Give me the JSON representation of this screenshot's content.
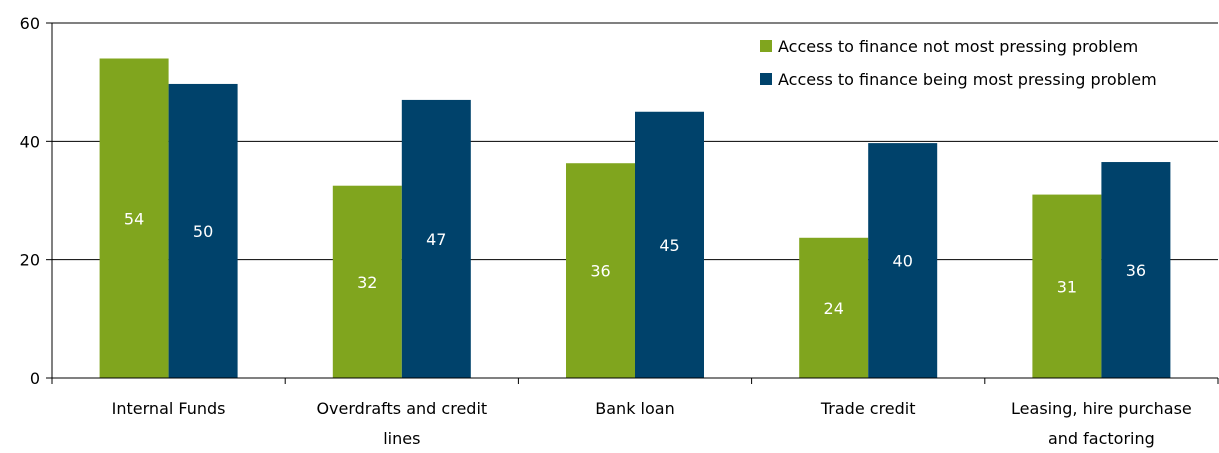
{
  "chart_data": {
    "type": "bar",
    "title": "",
    "xlabel": "",
    "ylabel": "",
    "ylim": [
      0,
      60
    ],
    "yticks": [
      0,
      20,
      40,
      60
    ],
    "grid": true,
    "legend_position": "top-right",
    "categories": [
      [
        "Internal Funds"
      ],
      [
        "Overdrafts and credit",
        "lines"
      ],
      [
        "Bank loan"
      ],
      [
        "Trade credit"
      ],
      [
        "Leasing, hire purchase",
        "and factoring"
      ]
    ],
    "series": [
      {
        "name": "Access to finance not most pressing problem",
        "color": "#80a51e",
        "values": [
          54,
          32.5,
          36.3,
          23.7,
          31
        ],
        "labels": [
          "54",
          "32",
          "36",
          "24",
          "31"
        ]
      },
      {
        "name": "Access to finance being most pressing problem",
        "color": "#00426b",
        "values": [
          49.7,
          47,
          45,
          39.7,
          36.5
        ],
        "labels": [
          "50",
          "47",
          "45",
          "40",
          "36"
        ]
      }
    ]
  }
}
